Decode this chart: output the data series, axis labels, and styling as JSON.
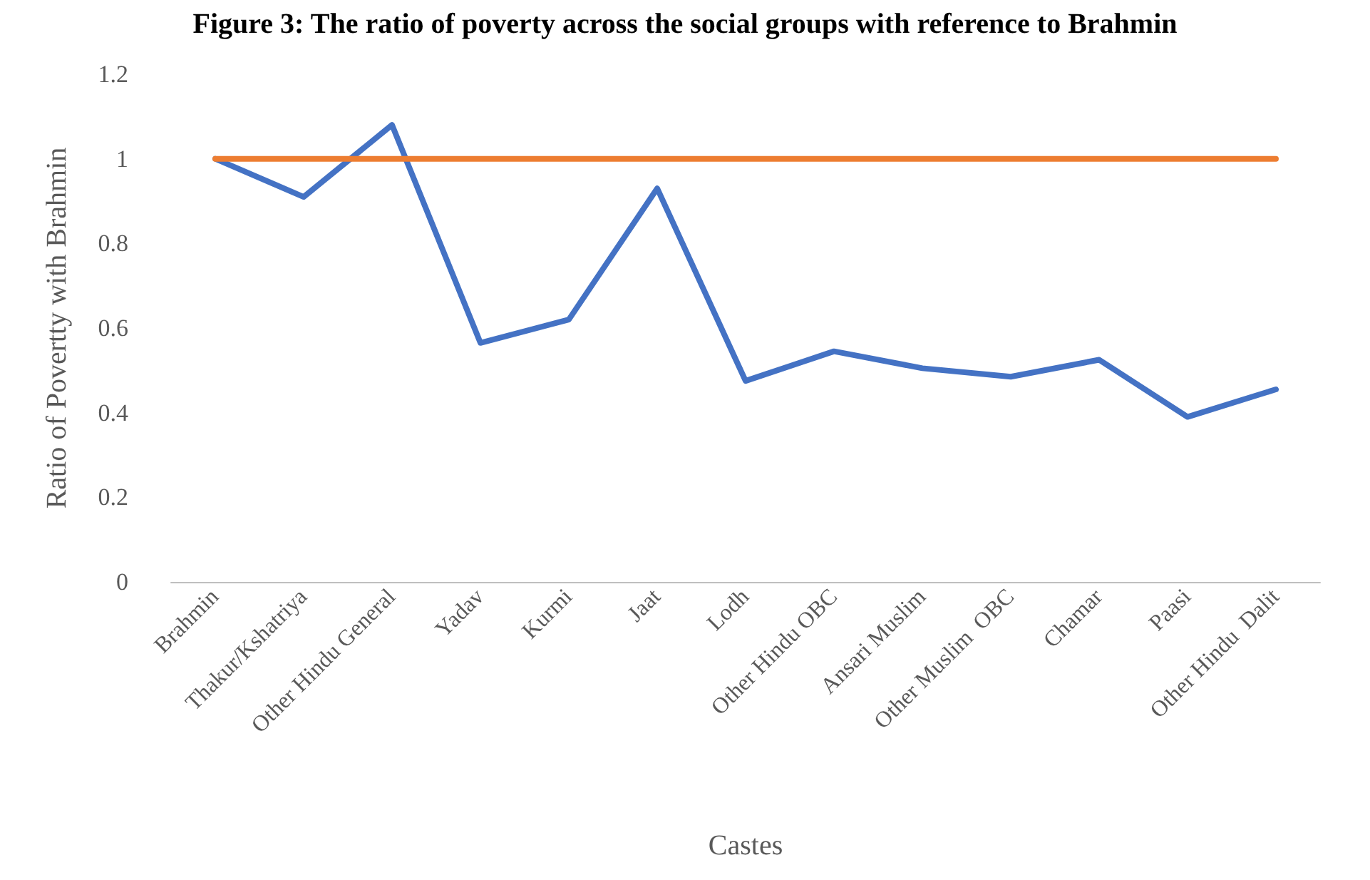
{
  "chart_data": {
    "type": "line",
    "title": "Figure 3: The ratio of poverty across the social groups with reference to Brahmin",
    "xlabel": "Castes",
    "ylabel": "Ratio of Povertty with Brahmin",
    "categories": [
      "Brahmin",
      "Thakur/Kshatriya",
      "Other Hindu General",
      "Yadav",
      "Kurmi",
      "Jaat",
      "Lodh",
      "Other Hindu OBC",
      "Ansari Muslim",
      "Other Muslim  OBC",
      "Chamar",
      "Paasi",
      "Other Hindu  Dalit"
    ],
    "series": [
      {
        "color": "#4472c4",
        "values": [
          1.0,
          0.91,
          1.08,
          0.565,
          0.62,
          0.93,
          0.475,
          0.545,
          0.505,
          0.485,
          0.525,
          0.39,
          0.455
        ]
      },
      {
        "color": "#ed7d31",
        "values": [
          1,
          1,
          1,
          1,
          1,
          1,
          1,
          1,
          1,
          1,
          1,
          1,
          1
        ]
      }
    ],
    "ylim": [
      0,
      1.2
    ],
    "yticks": [
      0,
      0.2,
      0.4,
      0.6,
      0.8,
      1,
      1.2
    ],
    "grid": false,
    "marker": "none",
    "line_style": "solid"
  }
}
